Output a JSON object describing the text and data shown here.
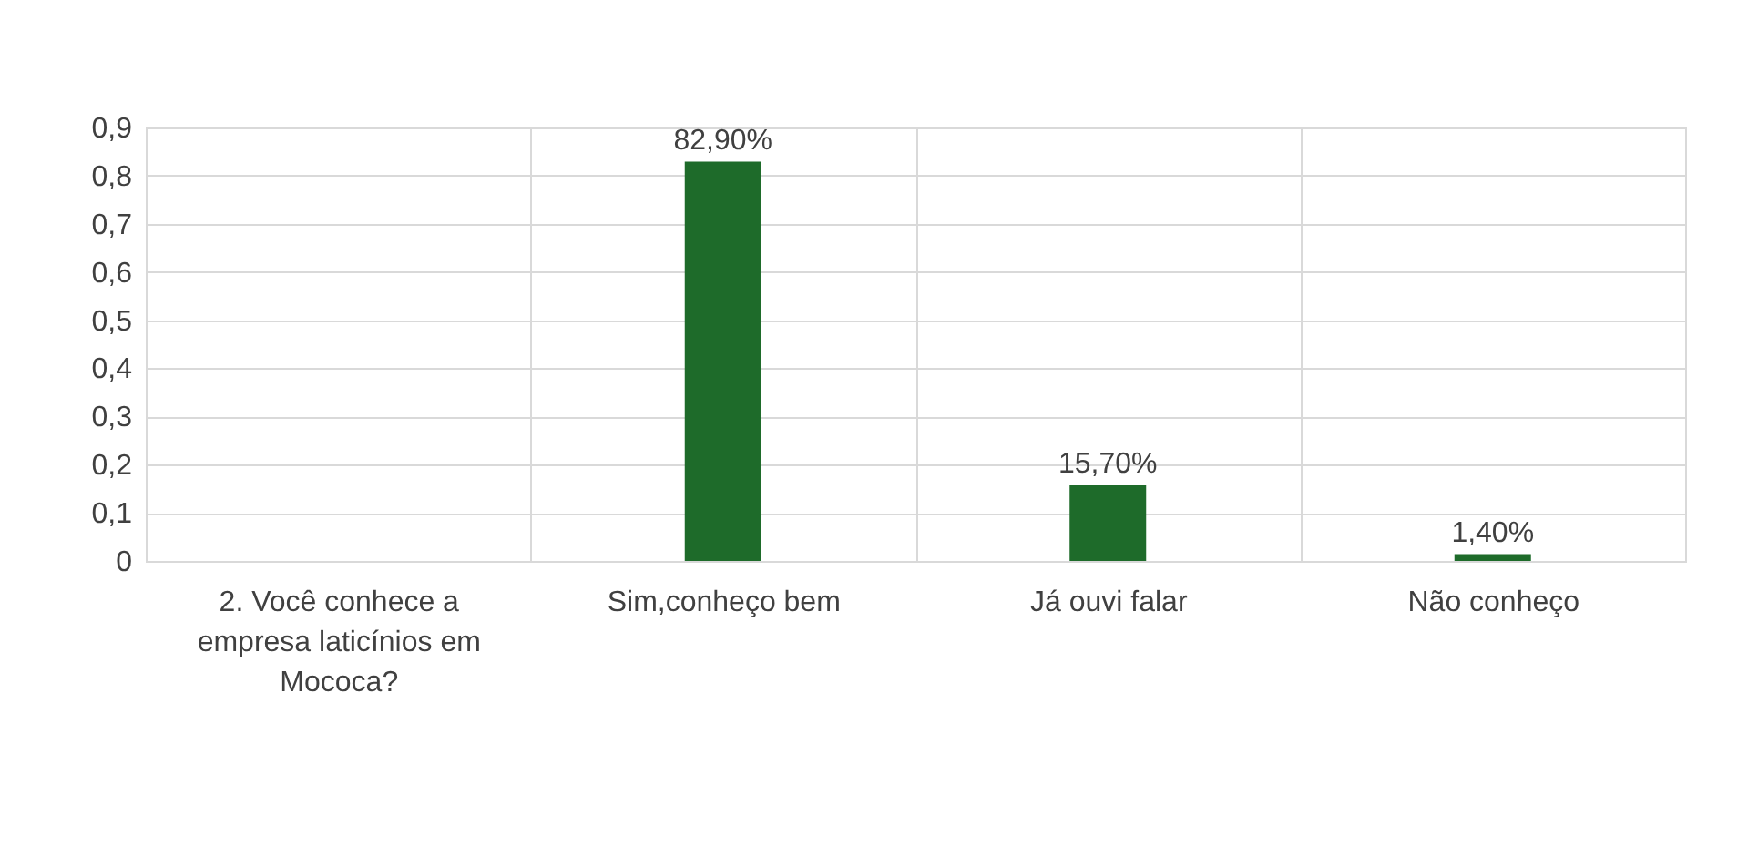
{
  "chart_data": {
    "type": "bar",
    "categories": [
      "2. Você conhece a empresa laticínios em Mococa?",
      "Sim,conheço bem",
      "Já ouvi falar",
      "Não conheço"
    ],
    "values": [
      null,
      0.829,
      0.157,
      0.014
    ],
    "value_labels": [
      null,
      "82,90%",
      "15,70%",
      "1,40%"
    ],
    "color": "#1e6b2a",
    "ylim": [
      0,
      0.9
    ],
    "yticks": [
      0,
      {
        "value": 0.1,
        "label": "0,1"
      },
      {
        "value": 0.2,
        "label": "0,2"
      },
      {
        "value": 0.3,
        "label": "0,3"
      },
      {
        "value": 0.4,
        "label": "0,4"
      },
      {
        "value": 0.5,
        "label": "0,5"
      },
      {
        "value": 0.6,
        "label": "0,6"
      },
      {
        "value": 0.7,
        "label": "0,7"
      },
      {
        "value": 0.8,
        "label": "0,8"
      },
      {
        "value": 0.9,
        "label": "0,9"
      }
    ],
    "grid": true
  }
}
